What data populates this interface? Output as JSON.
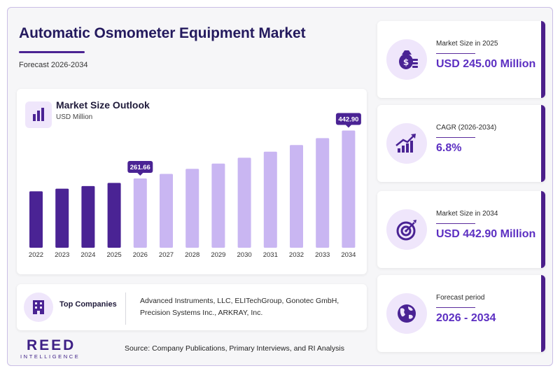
{
  "header": {
    "title": "Automatic Osmometer Equipment Market",
    "subtitle": "Forecast 2026-2034"
  },
  "chart_card": {
    "title": "Market Size Outlook",
    "unit": "USD Million"
  },
  "chart_data": {
    "type": "bar",
    "title": "Market Size Outlook",
    "ylabel": "USD Million",
    "categories": [
      "2022",
      "2023",
      "2024",
      "2025",
      "2026",
      "2027",
      "2028",
      "2029",
      "2030",
      "2031",
      "2032",
      "2033",
      "2034"
    ],
    "values": [
      213,
      223,
      233,
      245,
      261.66,
      279,
      298,
      318,
      340,
      363,
      388,
      414,
      442.9
    ],
    "data_labels": {
      "2026": "261.66",
      "2034": "442.90"
    },
    "ylim": [
      0,
      460
    ],
    "grid": false,
    "colors": {
      "historical": "#4a2394",
      "forecast": "#c9b6f2",
      "label_bg": "#4a2394"
    },
    "historical_until": "2025"
  },
  "companies": {
    "label": "Top Companies",
    "text": "Advanced Instruments, LLC, ELITechGroup, Gonotec GmbH, Precision Systems Inc., ARKRAY, Inc."
  },
  "stats": [
    {
      "label": "Market Size in 2025",
      "value": "USD 245.00 Million",
      "icon": "money-bag-icon"
    },
    {
      "label": "CAGR (2026-2034)",
      "value": "6.8%",
      "icon": "growth-chart-icon"
    },
    {
      "label": "Market Size in 2034",
      "value": "USD 442.90 Million",
      "icon": "target-icon"
    },
    {
      "label": "Forecast period",
      "value": "2026 - 2034",
      "icon": "globe-icon"
    }
  ],
  "footer": {
    "logo_main": "REED",
    "logo_sub": "INTELLIGENCE",
    "source": "Source: Company Publications, Primary Interviews, and RI Analysis"
  },
  "colors": {
    "brand": "#3e2086",
    "accent": "#5c2fc2",
    "icon_bg": "#efe6fb"
  }
}
